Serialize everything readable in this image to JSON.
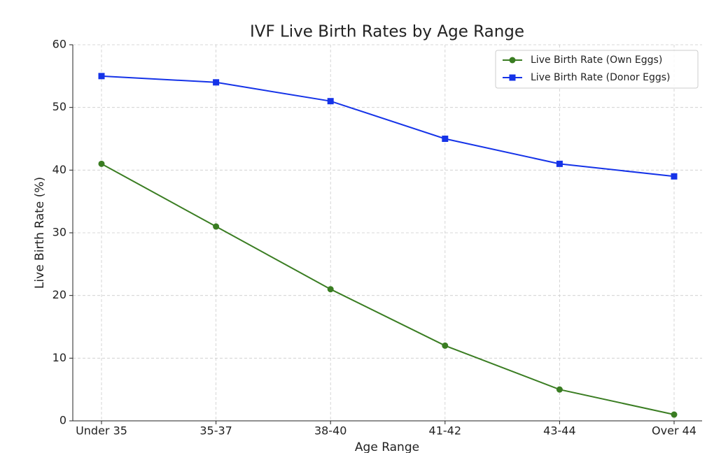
{
  "chart_data": {
    "type": "line",
    "title": "IVF Live Birth Rates by Age Range",
    "xlabel": "Age Range",
    "ylabel": "Live Birth Rate (%)",
    "categories": [
      "Under 35",
      "35-37",
      "38-40",
      "41-42",
      "43-44",
      "Over 44"
    ],
    "series": [
      {
        "name": "Live Birth Rate (Own Eggs)",
        "color": "#3a7d22",
        "marker": "circle",
        "values": [
          41,
          31,
          21,
          12,
          5,
          1
        ]
      },
      {
        "name": "Live Birth Rate (Donor Eggs)",
        "color": "#1533e8",
        "marker": "square",
        "values": [
          55,
          54,
          51,
          45,
          41,
          39
        ]
      }
    ],
    "ylim": [
      0,
      60
    ],
    "yticks": [
      0,
      10,
      20,
      30,
      40,
      50,
      60
    ],
    "grid": true,
    "legend": "upper right"
  }
}
